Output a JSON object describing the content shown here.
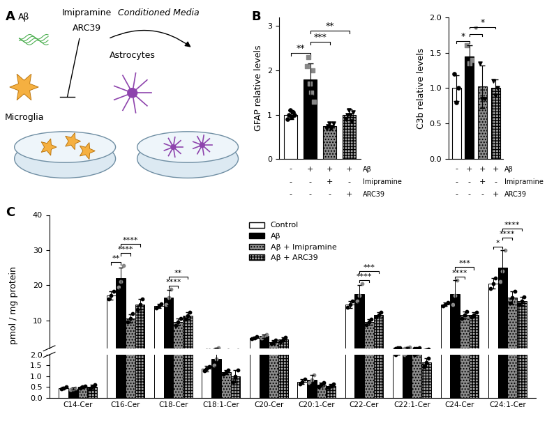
{
  "diagram": {
    "panel_label": "A",
    "texts": {
      "peptide": "Aβ",
      "drug1": "Imipramine",
      "drug2": "ARC39",
      "cell1": "Microglia",
      "transfer": "Conditioned Media",
      "cell2": "Astrocytes"
    }
  },
  "chart_data": [
    {
      "type": "bar",
      "panel_label": "B",
      "ylabel": "GFAP relative levels",
      "categories": [
        null,
        null,
        null,
        null
      ],
      "values": [
        1.0,
        1.8,
        0.75,
        1.0
      ],
      "errors": [
        0.1,
        0.35,
        0.08,
        0.12
      ],
      "points": [
        [
          0.9,
          1.0,
          1.1,
          0.95,
          1.05,
          1.0
        ],
        [
          2.1,
          2.3,
          1.7,
          1.5,
          2.0,
          1.3
        ],
        [
          0.7,
          0.75,
          0.8,
          0.7,
          0.72,
          0.8
        ],
        [
          0.9,
          1.0,
          1.1,
          1.0,
          0.85,
          1.05
        ]
      ],
      "colors": [
        "#ffffff",
        "#000000",
        "#8c8c8c",
        "#a6a6a6"
      ],
      "ylim": [
        0,
        3.2
      ],
      "yticks": [
        0,
        1,
        2,
        3
      ],
      "conditions": [
        {
          "name": "Aβ",
          "marks": [
            "-",
            "+",
            "+",
            "+"
          ]
        },
        {
          "name": "Imipramine",
          "marks": [
            "-",
            "-",
            "+",
            "-"
          ]
        },
        {
          "name": "ARC39",
          "marks": [
            "-",
            "-",
            "-",
            "+"
          ]
        }
      ],
      "comparisons": [
        {
          "from": 0,
          "to": 1,
          "label": "**"
        },
        {
          "from": 1,
          "to": 2,
          "label": "***"
        },
        {
          "from": 1,
          "to": 3,
          "label": "**"
        }
      ]
    },
    {
      "type": "bar",
      "ylabel": "C3b relative levels",
      "categories": [
        null,
        null,
        null,
        null
      ],
      "values": [
        1.0,
        1.45,
        1.02,
        1.0
      ],
      "errors": [
        0.18,
        0.15,
        0.3,
        0.12
      ],
      "points": [
        [
          1.2,
          0.8,
          1.0
        ],
        [
          1.6,
          1.35,
          1.4
        ],
        [
          1.35,
          0.85,
          0.85
        ],
        [
          1.1,
          0.9,
          1.0
        ]
      ],
      "colors": [
        "#ffffff",
        "#000000",
        "#8c8c8c",
        "#a6a6a6"
      ],
      "ylim": [
        0,
        2.0
      ],
      "yticks": [
        {
          "value": 0,
          "label": "0.0"
        },
        {
          "value": 0.5,
          "label": "0.5"
        },
        {
          "value": 1,
          "label": "1.0"
        },
        {
          "value": 1.5,
          "label": "1.5"
        },
        {
          "value": 2,
          "label": "2.0"
        }
      ],
      "conditions": [
        {
          "name": "Aβ",
          "marks": [
            "-",
            "+",
            "+",
            "+"
          ]
        },
        {
          "name": "Imipramine",
          "marks": [
            "-",
            "-",
            "+",
            "-"
          ]
        },
        {
          "name": "ARC39",
          "marks": [
            "-",
            "-",
            "-",
            "+"
          ]
        }
      ],
      "comparisons": [
        {
          "from": 0,
          "to": 1,
          "label": "*"
        },
        {
          "from": 1,
          "to": 2,
          "label": "*"
        },
        {
          "from": 1,
          "to": 3,
          "label": "*"
        }
      ]
    },
    {
      "type": "bar",
      "panel_label": "C",
      "ylabel": "pmol / mg protein",
      "categories": [
        "C14-Cer",
        "C16-Cer",
        "C18-Cer",
        "C18:1-Cer",
        "C20-Cer",
        "C20:1-Cer",
        "C22-Cer",
        "C22:1-Cer",
        "C24-Cer",
        "C24:1-Cer"
      ],
      "series": [
        {
          "name": "Control",
          "color": "#ffffff",
          "values": [
            0.45,
            17,
            14,
            1.35,
            5.0,
            0.75,
            14.5,
            2.1,
            14.5,
            20.5
          ],
          "errors": [
            0.05,
            1.2,
            0.6,
            0.12,
            0.3,
            0.12,
            1,
            0.1,
            0.5,
            1.5
          ],
          "points": [
            [
              0.4,
              0.45,
              0.5
            ],
            [
              16,
              17,
              18.2
            ],
            [
              13.5,
              14,
              14.6
            ],
            [
              1.25,
              1.35,
              1.45
            ],
            [
              4.7,
              5.0,
              5.3
            ],
            [
              0.65,
              0.75,
              0.87
            ],
            [
              13.6,
              14.5,
              15.5
            ],
            [
              2.0,
              2.1,
              2.2
            ],
            [
              14,
              14.5,
              15
            ],
            [
              19,
              20.5,
              22
            ]
          ]
        },
        {
          "name": "Aβ",
          "color": "#000000",
          "values": [
            0.42,
            22,
            16.5,
            1.8,
            5.5,
            0.85,
            17.5,
            2.2,
            17.5,
            25
          ],
          "errors": [
            0.05,
            3,
            2.2,
            0.35,
            0.5,
            0.2,
            2.5,
            0.25,
            4,
            5
          ],
          "points": [
            [
              0.38,
              0.42,
              0.46
            ],
            [
              19.5,
              21,
              25.5
            ],
            [
              14.5,
              16.5,
              18.8
            ],
            [
              1.5,
              1.8,
              2.15
            ],
            [
              5.0,
              5.5,
              6.0
            ],
            [
              0.7,
              0.85,
              1.05
            ],
            [
              15.5,
              17,
              20.5
            ],
            [
              2.0,
              2.2,
              2.45
            ],
            [
              14.5,
              17,
              21.5
            ],
            [
              21,
              24,
              30
            ]
          ]
        },
        {
          "name": "Aβ + Imipramine",
          "color": "#8c8c8c",
          "values": [
            0.5,
            10.5,
            9.5,
            1.2,
            3.8,
            0.62,
            9.5,
            2.05,
            11.5,
            16.5
          ],
          "errors": [
            0.05,
            1.2,
            1,
            0.1,
            0.6,
            0.1,
            0.8,
            0.05,
            1,
            1.8
          ],
          "points": [
            [
              0.45,
              0.5,
              0.55
            ],
            [
              9.5,
              10.5,
              11.8
            ],
            [
              8.5,
              9.5,
              10.5
            ],
            [
              1.1,
              1.2,
              1.3
            ],
            [
              3.3,
              3.8,
              4.4
            ],
            [
              0.52,
              0.62,
              0.72
            ],
            [
              8.8,
              9.5,
              10.3
            ],
            [
              2.0,
              2.05,
              2.1
            ],
            [
              10.5,
              11.5,
              12.5
            ],
            [
              14.8,
              16.5,
              18.3
            ]
          ]
        },
        {
          "name": "Aβ + ARC39",
          "color": "#a6a6a6",
          "values": [
            0.5,
            14.5,
            11.2,
            1.0,
            4.5,
            0.55,
            11.5,
            1.65,
            11.5,
            15.5
          ],
          "errors": [
            0.1,
            1.5,
            1,
            0.3,
            0.6,
            0.08,
            0.8,
            0.2,
            0.7,
            1.2
          ],
          "points": [
            [
              0.4,
              0.5,
              0.6
            ],
            [
              13,
              14.5,
              16
            ],
            [
              10.2,
              11.2,
              12.2
            ],
            [
              0.75,
              1.0,
              1.3
            ],
            [
              4.0,
              4.5,
              5.1
            ],
            [
              0.48,
              0.55,
              0.63
            ],
            [
              10.8,
              11.5,
              12.3
            ],
            [
              1.45,
              1.65,
              1.85
            ],
            [
              10.8,
              11.5,
              12.2
            ],
            [
              14.4,
              15.5,
              16.6
            ]
          ]
        }
      ],
      "broken_axis": [
        {
          "ylim": [
            0,
            2.0
          ],
          "yticks": [
            {
              "value": 0,
              "label": "0.0"
            },
            {
              "value": 0.5,
              "label": "0.5"
            },
            {
              "value": 1,
              "label": "1.0"
            },
            {
              "value": 1.5,
              "label": "1.5"
            },
            {
              "value": 2,
              "label": "2.0"
            }
          ]
        },
        {
          "ylim": [
            2,
            40
          ],
          "yticks": [
            10,
            20,
            30,
            40
          ]
        }
      ],
      "legend": "upper center",
      "comparisons": [
        {
          "category": 1,
          "from": 0,
          "to": 1,
          "label": "**"
        },
        {
          "category": 1,
          "from": 1,
          "to": 2,
          "label": "****"
        },
        {
          "category": 1,
          "from": 1,
          "to": 3,
          "label": "****"
        },
        {
          "category": 2,
          "from": 1,
          "to": 2,
          "label": "****"
        },
        {
          "category": 2,
          "from": 1,
          "to": 3,
          "label": "**"
        },
        {
          "category": 6,
          "from": 1,
          "to": 2,
          "label": "****"
        },
        {
          "category": 6,
          "from": 1,
          "to": 3,
          "label": "***"
        },
        {
          "category": 8,
          "from": 1,
          "to": 2,
          "label": "****"
        },
        {
          "category": 8,
          "from": 1,
          "to": 3,
          "label": "***"
        },
        {
          "category": 9,
          "from": 0,
          "to": 1,
          "label": "*"
        },
        {
          "category": 9,
          "from": 1,
          "to": 2,
          "label": "****"
        },
        {
          "category": 9,
          "from": 1,
          "to": 3,
          "label": "****"
        }
      ]
    }
  ]
}
